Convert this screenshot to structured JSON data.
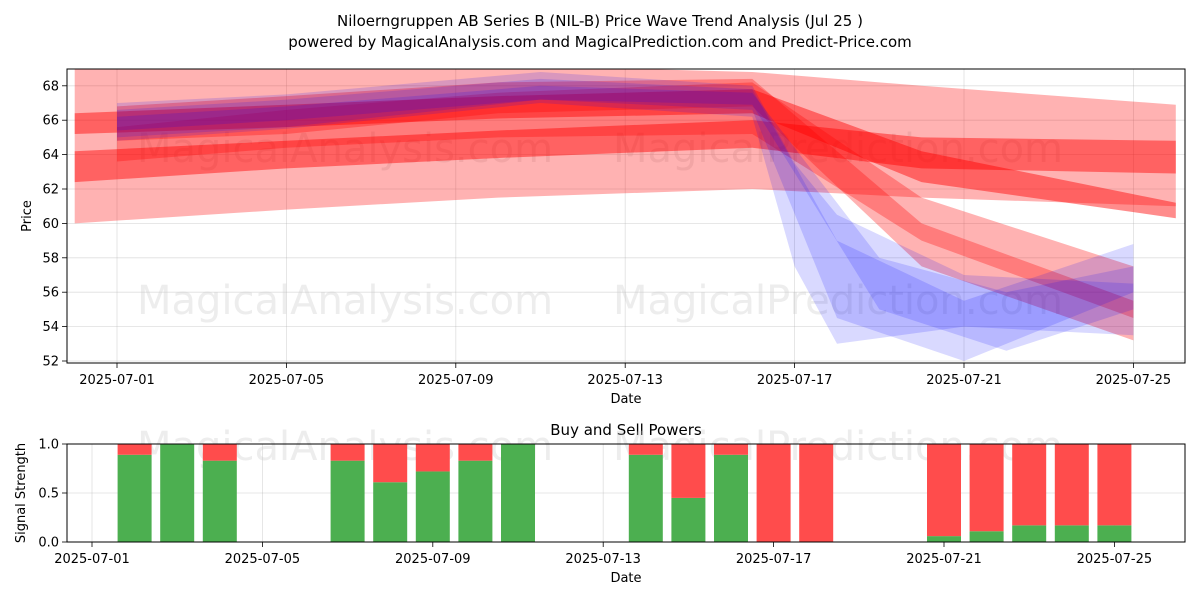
{
  "title_line1": "Niloerngruppen AB Series B (NIL-B) Price Wave Trend Analysis (Jul 25 )",
  "title_line2": "powered by MagicalAnalysis.com and MagicalPrediction.com and Predict-Price.com",
  "watermarks": [
    "MagicalAnalysis.com",
    "MagicalPrediction.com"
  ],
  "colors": {
    "red_band": "#ff0000",
    "blue_band": "#0000ff",
    "buy": "#4caf50",
    "sell": "#ff4c4c"
  },
  "chart_data": [
    {
      "type": "area",
      "title": "",
      "xlabel": "Date",
      "ylabel": "Price",
      "xlim": [
        "2025-06-30",
        "2025-07-26"
      ],
      "ylim": [
        52,
        69
      ],
      "x_ticks": [
        "2025-07-01",
        "2025-07-05",
        "2025-07-09",
        "2025-07-13",
        "2025-07-17",
        "2025-07-21",
        "2025-07-25"
      ],
      "y_ticks": [
        52,
        54,
        56,
        58,
        60,
        62,
        64,
        66,
        68
      ],
      "grid": true,
      "series": [
        {
          "color": "red",
          "x": [
            "2025-06-30",
            "2025-07-05",
            "2025-07-10",
            "2025-07-16",
            "2025-07-20",
            "2025-07-26"
          ],
          "upper": [
            69.5,
            69.3,
            69.2,
            68.8,
            68.0,
            66.9
          ],
          "lower": [
            60.0,
            60.8,
            61.5,
            62.0,
            61.5,
            61.0
          ]
        },
        {
          "color": "red",
          "x": [
            "2025-06-30",
            "2025-07-05",
            "2025-07-10",
            "2025-07-16",
            "2025-07-20",
            "2025-07-26"
          ],
          "upper": [
            64.2,
            64.8,
            65.4,
            66.0,
            65.0,
            64.8
          ],
          "lower": [
            62.4,
            63.2,
            63.8,
            64.4,
            63.2,
            62.9
          ]
        },
        {
          "color": "red",
          "x": [
            "2025-06-30",
            "2025-07-05",
            "2025-07-10",
            "2025-07-16",
            "2025-07-20",
            "2025-07-26"
          ],
          "upper": [
            66.4,
            66.9,
            67.4,
            67.8,
            64.2,
            61.2
          ],
          "lower": [
            65.2,
            65.6,
            66.1,
            66.4,
            62.4,
            60.3
          ]
        },
        {
          "color": "red",
          "x": [
            "2025-07-01",
            "2025-07-05",
            "2025-07-10",
            "2025-07-16",
            "2025-07-20",
            "2025-07-25"
          ],
          "upper": [
            65.6,
            66.6,
            67.6,
            68.2,
            61.5,
            57.5
          ],
          "lower": [
            63.6,
            64.4,
            65.0,
            65.2,
            59.0,
            54.5
          ]
        },
        {
          "color": "red",
          "x": [
            "2025-07-01",
            "2025-07-05",
            "2025-07-10",
            "2025-07-16",
            "2025-07-20",
            "2025-07-25"
          ],
          "upper": [
            66.8,
            67.4,
            68.2,
            68.4,
            60.0,
            55.5
          ],
          "lower": [
            64.8,
            65.2,
            66.4,
            66.8,
            57.5,
            53.2
          ]
        },
        {
          "color": "blue",
          "x": [
            "2025-07-01",
            "2025-07-05",
            "2025-07-11",
            "2025-07-16",
            "2025-07-17",
            "2025-07-18",
            "2025-07-21",
            "2025-07-25"
          ],
          "upper": [
            67.0,
            67.5,
            68.8,
            68.0,
            63.5,
            60.5,
            57.0,
            56.5
          ],
          "lower": [
            64.8,
            65.5,
            67.0,
            66.2,
            57.5,
            53.0,
            54.0,
            53.5
          ]
        },
        {
          "color": "blue",
          "x": [
            "2025-07-01",
            "2025-07-05",
            "2025-07-11",
            "2025-07-16",
            "2025-07-18",
            "2025-07-21",
            "2025-07-25"
          ],
          "upper": [
            66.6,
            67.2,
            68.4,
            67.8,
            59.0,
            55.5,
            58.8
          ],
          "lower": [
            65.0,
            65.6,
            67.2,
            66.6,
            54.5,
            52.0,
            56.0
          ]
        },
        {
          "color": "blue",
          "x": [
            "2025-07-01",
            "2025-07-05",
            "2025-07-11",
            "2025-07-16",
            "2025-07-19",
            "2025-07-22",
            "2025-07-25"
          ],
          "upper": [
            66.2,
            66.8,
            68.0,
            67.6,
            58.0,
            56.0,
            57.5
          ],
          "lower": [
            65.4,
            66.0,
            67.2,
            66.9,
            55.0,
            52.6,
            55.0
          ]
        }
      ]
    },
    {
      "type": "bar",
      "title": "Buy and Sell Powers",
      "xlabel": "Date",
      "ylabel": "Signal Strength",
      "ylim": [
        0,
        1
      ],
      "y_ticks": [
        0.0,
        0.5,
        1.0
      ],
      "x_ticks": [
        "2025-07-01",
        "2025-07-05",
        "2025-07-09",
        "2025-07-13",
        "2025-07-17",
        "2025-07-21",
        "2025-07-25"
      ],
      "dates": [
        "2025-07-02",
        "2025-07-03",
        "2025-07-04",
        "2025-07-07",
        "2025-07-08",
        "2025-07-09",
        "2025-07-10",
        "2025-07-11",
        "2025-07-14",
        "2025-07-15",
        "2025-07-16",
        "2025-07-17",
        "2025-07-18",
        "2025-07-21",
        "2025-07-22",
        "2025-07-23",
        "2025-07-24",
        "2025-07-25"
      ],
      "buy": [
        0.89,
        1.0,
        0.83,
        0.83,
        0.61,
        0.72,
        0.83,
        1.0,
        0.89,
        0.45,
        0.89,
        0.0,
        0.0,
        0.06,
        0.11,
        0.17,
        0.17,
        0.17
      ],
      "sell": [
        0.11,
        0.0,
        0.17,
        0.17,
        0.39,
        0.28,
        0.17,
        0.0,
        0.11,
        0.55,
        0.11,
        1.0,
        1.0,
        0.94,
        0.89,
        0.83,
        0.83,
        0.83
      ]
    }
  ]
}
